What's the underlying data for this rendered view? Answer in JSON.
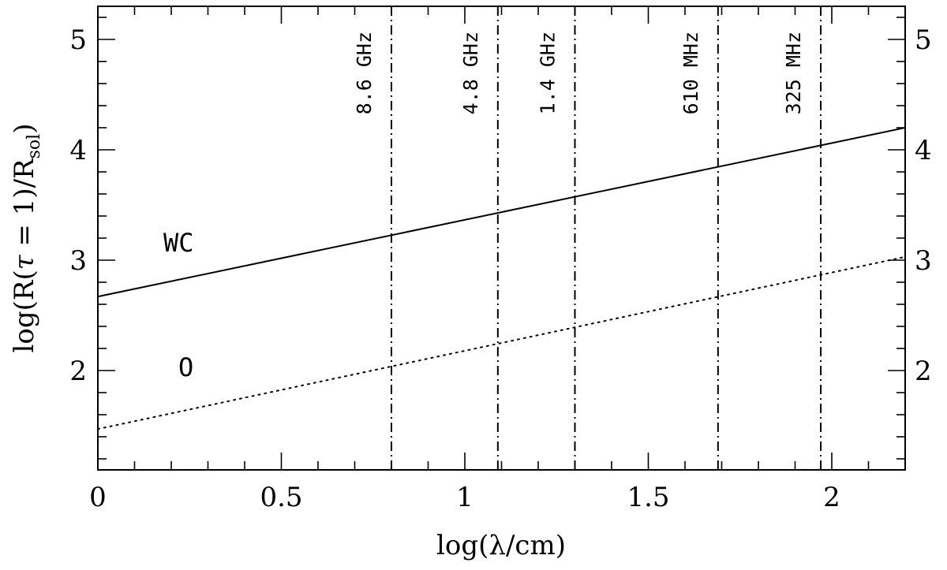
{
  "chart_data": {
    "type": "line",
    "xlabel": "log(λ/cm)",
    "ylabel": {
      "prefix": "log(R(",
      "tau": "τ",
      "mid": " = 1)/R",
      "sub": "sol",
      "suffix": ")"
    },
    "xlim": [
      0,
      2.2
    ],
    "ylim": [
      1.1,
      5.3
    ],
    "x_ticks": [
      {
        "value": 0,
        "label": "0"
      },
      {
        "value": 0.5,
        "label": "0.5"
      },
      {
        "value": 1,
        "label": "1"
      },
      {
        "value": 1.5,
        "label": "1.5"
      },
      {
        "value": 2,
        "label": "2"
      }
    ],
    "y_ticks": [
      {
        "value": 2,
        "label": "2"
      },
      {
        "value": 3,
        "label": "3"
      },
      {
        "value": 4,
        "label": "4"
      },
      {
        "value": 5,
        "label": "5"
      }
    ],
    "x_minor_step": 0.1,
    "y_minor_step": 0.2,
    "right_axis_labels": true,
    "series": [
      {
        "name": "WC",
        "style": "solid",
        "x": [
          0,
          2.2
        ],
        "y": [
          2.67,
          4.2
        ],
        "label_at": [
          0.22,
          3.08
        ]
      },
      {
        "name": "O",
        "style": "dotted",
        "x": [
          0,
          2.2
        ],
        "y": [
          1.47,
          3.03
        ],
        "label_at": [
          0.24,
          1.95
        ]
      }
    ],
    "frequency_markers": [
      {
        "label": "8.6 GHz",
        "x": 0.8
      },
      {
        "label": "4.8 GHz",
        "x": 1.09
      },
      {
        "label": "1.4 GHz",
        "x": 1.3
      },
      {
        "label": "610 MHz",
        "x": 1.69
      },
      {
        "label": "325 MHz",
        "x": 1.97
      }
    ],
    "grid": false,
    "colors": {
      "line": "#000000",
      "background": "#ffffff"
    }
  }
}
